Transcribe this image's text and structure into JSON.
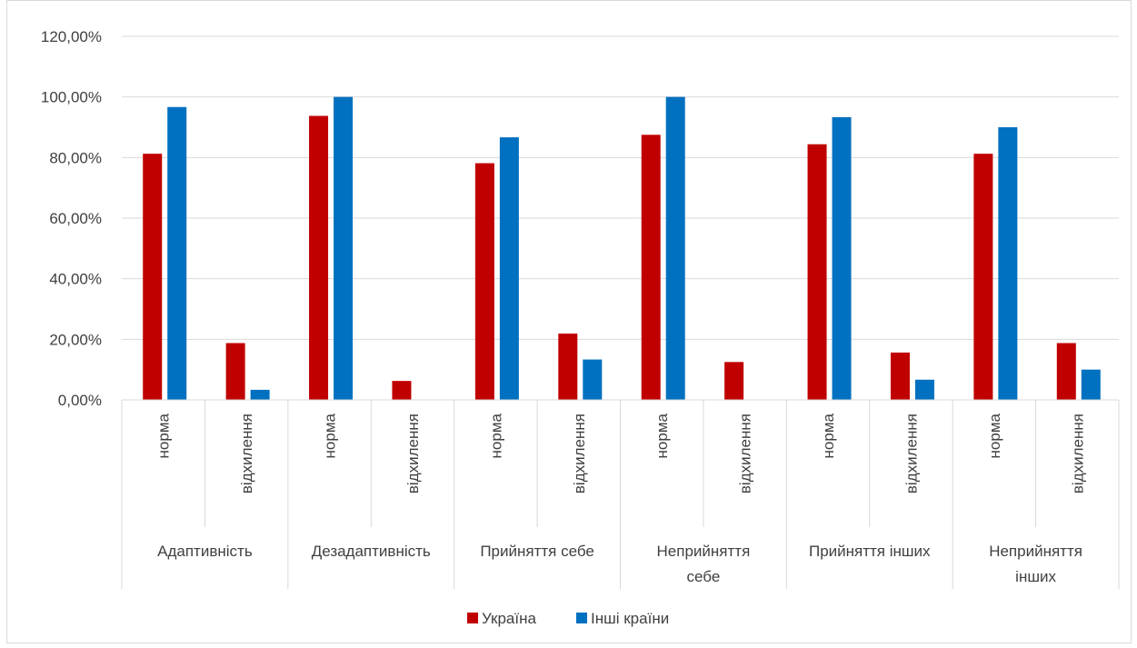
{
  "chart_data": {
    "type": "bar",
    "title": "",
    "xlabel": "",
    "ylabel": "",
    "ylim": [
      0,
      120
    ],
    "y_ticks": [
      "0,00%",
      "20,00%",
      "40,00%",
      "60,00%",
      "80,00%",
      "100,00%",
      "120,00%"
    ],
    "y_tick_values": [
      0,
      20,
      40,
      60,
      80,
      100,
      120
    ],
    "grid": true,
    "legend_position": "bottom",
    "groups": [
      {
        "label": [
          "Адаптивність"
        ],
        "subcategories": [
          "норма",
          "відхилення"
        ]
      },
      {
        "label": [
          "Дезадаптивність"
        ],
        "subcategories": [
          "норма",
          "відхилення"
        ]
      },
      {
        "label": [
          "Прийняття себе"
        ],
        "subcategories": [
          "норма",
          "відхилення"
        ]
      },
      {
        "label": [
          "Неприйняття",
          "себе"
        ],
        "subcategories": [
          "норма",
          "відхилення"
        ]
      },
      {
        "label": [
          "Прийняття інших"
        ],
        "subcategories": [
          "норма",
          "відхилення"
        ]
      },
      {
        "label": [
          "Неприйняття",
          "інших"
        ],
        "subcategories": [
          "норма",
          "відхилення"
        ]
      }
    ],
    "series": [
      {
        "name": "Україна",
        "color": "#c00000",
        "values": [
          81.25,
          18.75,
          93.75,
          6.25,
          78.13,
          21.88,
          87.5,
          12.5,
          84.38,
          15.63,
          81.25,
          18.75
        ]
      },
      {
        "name": "Інші країни",
        "color": "#0070c0",
        "values": [
          96.67,
          3.33,
          100.0,
          0.0,
          86.67,
          13.33,
          100.0,
          0.0,
          93.33,
          6.67,
          90.0,
          10.0
        ]
      }
    ]
  }
}
